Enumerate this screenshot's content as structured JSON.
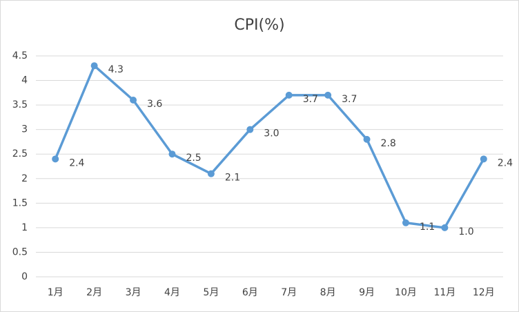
{
  "chart_data": {
    "type": "line",
    "title": "CPI(%)",
    "categories": [
      "1月",
      "2月",
      "3月",
      "4月",
      "5月",
      "6月",
      "7月",
      "8月",
      "9月",
      "10月",
      "11月",
      "12月"
    ],
    "series": [
      {
        "name": "CPI",
        "color": "#5b9bd5",
        "values": [
          2.4,
          4.3,
          3.6,
          2.5,
          2.1,
          3.0,
          3.7,
          3.7,
          2.8,
          1.1,
          1.0,
          2.4
        ],
        "value_labels": [
          "2.4",
          "4.3",
          "3.6",
          "2.5",
          "2.1",
          "3.0",
          "3.7",
          "3.7",
          "2.8",
          "1.1",
          "1.0",
          "2.4"
        ]
      }
    ],
    "ylim": [
      0,
      4.5
    ],
    "yticks": [
      0,
      0.5,
      1,
      1.5,
      2,
      2.5,
      3,
      3.5,
      4,
      4.5
    ],
    "grid": true
  }
}
